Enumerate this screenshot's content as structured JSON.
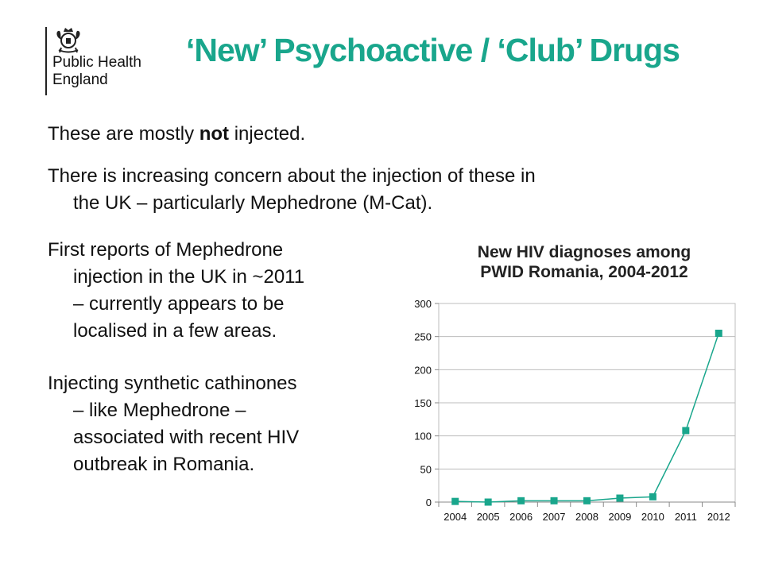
{
  "logo": {
    "line1": "Public Health",
    "line2": "England",
    "emblem": "royal-crest-icon"
  },
  "title": "‘New’ Psychoactive / ‘Club’ Drugs",
  "paragraphs": {
    "p1_pre": "These are mostly ",
    "p1_bold": "not",
    "p1_post": " injected.",
    "p2_line1": "There is increasing concern about the injection of these in",
    "p2_line2": "the UK – particularly Mephedrone (M-Cat).",
    "p3_line1": "First reports of Mephedrone",
    "p3_line2": "injection in the UK in ~2011",
    "p3_line3": "– currently appears to be",
    "p3_line4": "localised in a few areas.",
    "p4_line1": "Injecting synthetic cathinones",
    "p4_line2": " – like Mephedrone –",
    "p4_line3": "associated with recent HIV",
    "p4_line4": "outbreak in Romania."
  },
  "chart_data": {
    "type": "line",
    "title_line1": "New HIV diagnoses among",
    "title_line2": "PWID Romania, 2004-2012",
    "categories": [
      "2004",
      "2005",
      "2006",
      "2007",
      "2008",
      "2009",
      "2010",
      "2011",
      "2012"
    ],
    "values": [
      1,
      0,
      2,
      2,
      2,
      6,
      8,
      108,
      255
    ],
    "ylim": [
      0,
      300
    ],
    "yticks": [
      0,
      50,
      100,
      150,
      200,
      250,
      300
    ],
    "grid": true,
    "color": "#19a68c"
  }
}
